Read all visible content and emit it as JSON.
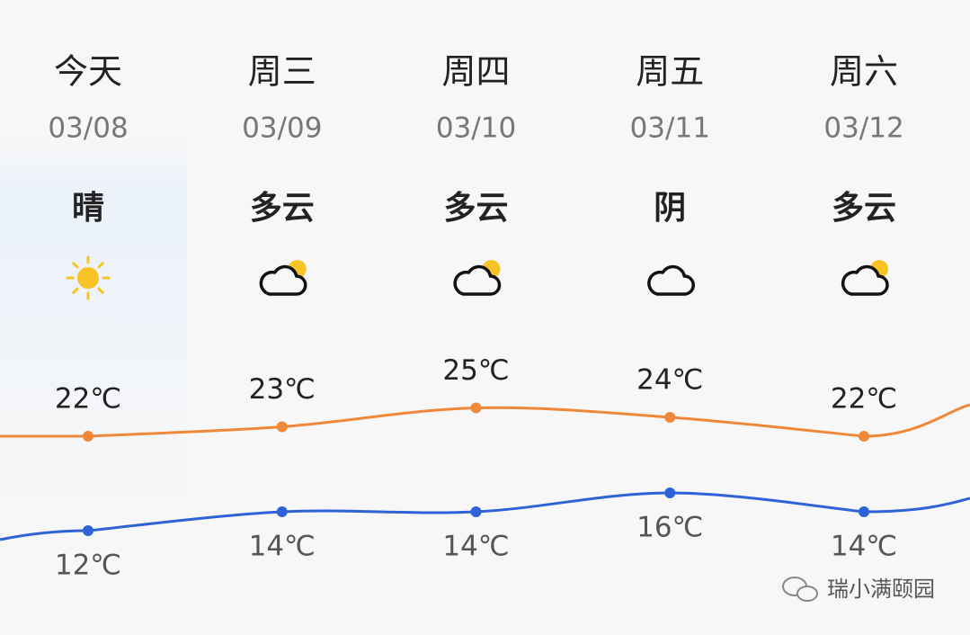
{
  "days": [
    {
      "name": "今天",
      "date": "03/08",
      "condition": "晴",
      "icon": "sun",
      "high": {
        "value": 22,
        "label": "22℃"
      },
      "low": {
        "value": 12,
        "label": "12℃"
      }
    },
    {
      "name": "周三",
      "date": "03/09",
      "condition": "多云",
      "icon": "cloud-sun",
      "high": {
        "value": 23,
        "label": "23℃"
      },
      "low": {
        "value": 14,
        "label": "14℃"
      }
    },
    {
      "name": "周四",
      "date": "03/10",
      "condition": "多云",
      "icon": "cloud-sun",
      "high": {
        "value": 25,
        "label": "25℃"
      },
      "low": {
        "value": 14,
        "label": "14℃"
      }
    },
    {
      "name": "周五",
      "date": "03/11",
      "condition": "阴",
      "icon": "cloud",
      "high": {
        "value": 24,
        "label": "24℃"
      },
      "low": {
        "value": 16,
        "label": "16℃"
      }
    },
    {
      "name": "周六",
      "date": "03/12",
      "condition": "多云",
      "icon": "cloud-sun",
      "high": {
        "value": 22,
        "label": "22℃"
      },
      "low": {
        "value": 14,
        "label": "14℃"
      }
    }
  ],
  "high_color": "#f0883a",
  "low_color": "#2f62d6",
  "watermark": "瑞小满颐园"
}
